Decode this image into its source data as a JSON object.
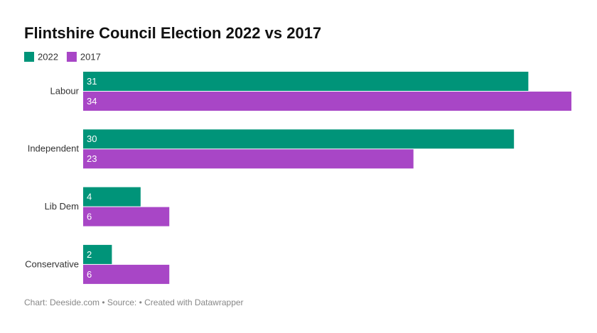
{
  "chart_data": {
    "type": "hbar",
    "title": "Flintshire Council Election 2022 vs 2017",
    "categories": [
      "Labour",
      "Independent",
      "Lib Dem",
      "Conservative"
    ],
    "series": [
      {
        "name": "2022",
        "color": "#009479",
        "values": [
          31,
          30,
          4,
          2
        ]
      },
      {
        "name": "2017",
        "color": "#a846c6",
        "values": [
          34,
          23,
          6,
          6
        ]
      }
    ],
    "xlim": [
      0,
      34
    ],
    "footer": "Chart: Deeside.com • Source: • Created with Datawrapper"
  }
}
